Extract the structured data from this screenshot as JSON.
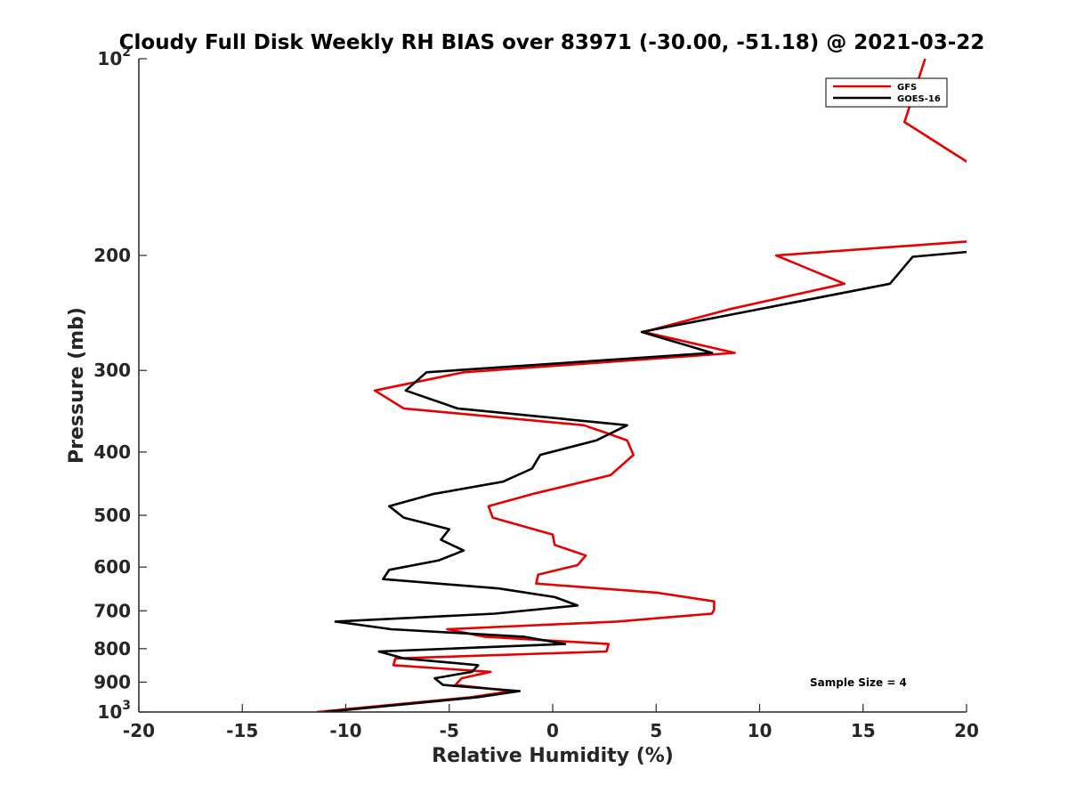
{
  "chart_data": {
    "type": "line",
    "title": "Cloudy Full Disk Weekly RH BIAS over 83971 (-30.00, -51.18) @ 2021-03-22",
    "xlabel": "Relative Humidity (%)",
    "ylabel": "Pressure (mb)",
    "xlim": [
      -20,
      20
    ],
    "ylim": [
      100,
      1000
    ],
    "y_scale": "log",
    "y_reversed": true,
    "x_ticks": [
      "-20",
      "-15",
      "-10",
      "-5",
      "0",
      "5",
      "10",
      "15",
      "20"
    ],
    "y_ticks": [
      {
        "value": 100,
        "base": "10",
        "exp": "2"
      },
      {
        "value": 200,
        "base": "200",
        "exp": ""
      },
      {
        "value": 300,
        "base": "300",
        "exp": ""
      },
      {
        "value": 400,
        "base": "400",
        "exp": ""
      },
      {
        "value": 500,
        "base": "500",
        "exp": ""
      },
      {
        "value": 600,
        "base": "600",
        "exp": ""
      },
      {
        "value": 700,
        "base": "700",
        "exp": ""
      },
      {
        "value": 800,
        "base": "800",
        "exp": ""
      },
      {
        "value": 900,
        "base": "900",
        "exp": ""
      },
      {
        "value": 1000,
        "base": "10",
        "exp": "3"
      }
    ],
    "legend_position": "top-right",
    "annotation": "Sample Size = 4",
    "series": [
      {
        "name": "GFS",
        "color": "#e60000",
        "points": [
          [
            18.0,
            100
          ],
          [
            17.0,
            125
          ],
          [
            20.5,
            147
          ],
          [
            20.5,
            190
          ],
          [
            10.8,
            200
          ],
          [
            14.1,
            221
          ],
          [
            8.5,
            242
          ],
          [
            4.4,
            262
          ],
          [
            8.8,
            282
          ],
          [
            -4.3,
            302
          ],
          [
            -8.6,
            322
          ],
          [
            -7.2,
            343
          ],
          [
            1.5,
            364
          ],
          [
            2.6,
            374
          ],
          [
            3.6,
            384
          ],
          [
            3.9,
            404
          ],
          [
            2.8,
            434
          ],
          [
            -1.0,
            464
          ],
          [
            -3.1,
            484
          ],
          [
            -2.9,
            504
          ],
          [
            0.0,
            535
          ],
          [
            0.1,
            555
          ],
          [
            1.6,
            576
          ],
          [
            1.2,
            596
          ],
          [
            -0.7,
            616
          ],
          [
            -0.8,
            636
          ],
          [
            5.1,
            657
          ],
          [
            7.8,
            677
          ],
          [
            7.8,
            697
          ],
          [
            7.7,
            707
          ],
          [
            3.1,
            727
          ],
          [
            -5.1,
            747
          ],
          [
            -3.3,
            767
          ],
          [
            2.7,
            787
          ],
          [
            2.6,
            808
          ],
          [
            -7.6,
            828
          ],
          [
            -7.7,
            848
          ],
          [
            -3.0,
            868
          ],
          [
            -4.4,
            888
          ],
          [
            -4.7,
            909
          ],
          [
            -2.0,
            929
          ],
          [
            -3.9,
            949
          ],
          [
            -11.4,
            1000
          ]
        ]
      },
      {
        "name": "GOES-16",
        "color": "#000000",
        "points": [
          [
            20.5,
            197
          ],
          [
            17.4,
            201
          ],
          [
            16.3,
            221
          ],
          [
            4.3,
            262
          ],
          [
            7.7,
            282
          ],
          [
            -6.1,
            302
          ],
          [
            -7.1,
            322
          ],
          [
            -4.6,
            343
          ],
          [
            3.6,
            364
          ],
          [
            2.1,
            384
          ],
          [
            -0.6,
            404
          ],
          [
            -1.0,
            424
          ],
          [
            -2.4,
            444
          ],
          [
            -5.8,
            464
          ],
          [
            -7.9,
            484
          ],
          [
            -7.2,
            504
          ],
          [
            -5.0,
            525
          ],
          [
            -5.4,
            545
          ],
          [
            -4.3,
            566
          ],
          [
            -5.5,
            586
          ],
          [
            -7.9,
            606
          ],
          [
            -8.2,
            626
          ],
          [
            -2.6,
            647
          ],
          [
            0.1,
            667
          ],
          [
            1.2,
            687
          ],
          [
            -2.8,
            707
          ],
          [
            -10.5,
            727
          ],
          [
            -7.8,
            747
          ],
          [
            -1.4,
            767
          ],
          [
            0.6,
            787
          ],
          [
            -8.4,
            808
          ],
          [
            -7.2,
            828
          ],
          [
            -3.6,
            848
          ],
          [
            -3.9,
            868
          ],
          [
            -5.7,
            888
          ],
          [
            -5.3,
            909
          ],
          [
            -1.6,
            929
          ],
          [
            -3.6,
            949
          ],
          [
            -11.0,
            1000
          ]
        ]
      }
    ]
  }
}
